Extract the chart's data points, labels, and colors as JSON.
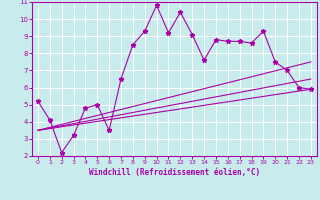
{
  "xlabel": "Windchill (Refroidissement éolien,°C)",
  "bg_color": "#c8ecec",
  "line_color": "#aa00aa",
  "grid_color": "#ffffff",
  "xlim": [
    -0.5,
    23.5
  ],
  "ylim": [
    2,
    11
  ],
  "xticks": [
    0,
    1,
    2,
    3,
    4,
    5,
    6,
    7,
    8,
    9,
    10,
    11,
    12,
    13,
    14,
    15,
    16,
    17,
    18,
    19,
    20,
    21,
    22,
    23
  ],
  "yticks": [
    2,
    3,
    4,
    5,
    6,
    7,
    8,
    9,
    10,
    11
  ],
  "series1_x": [
    0,
    1,
    2,
    3,
    4,
    5,
    6,
    7,
    8,
    9,
    10,
    11,
    12,
    13,
    14,
    15,
    16,
    17,
    18,
    19,
    20,
    21,
    22,
    23
  ],
  "series1_y": [
    5.2,
    4.1,
    2.2,
    3.2,
    4.8,
    5.0,
    3.5,
    6.5,
    8.5,
    9.3,
    10.8,
    9.2,
    10.4,
    9.1,
    7.6,
    8.8,
    8.7,
    8.7,
    8.6,
    9.3,
    7.5,
    7.0,
    6.0,
    5.9
  ],
  "series2_x": [
    0,
    23
  ],
  "series2_y": [
    3.5,
    5.9
  ],
  "series3_x": [
    0,
    23
  ],
  "series3_y": [
    3.5,
    6.5
  ],
  "series4_x": [
    0,
    23
  ],
  "series4_y": [
    3.5,
    7.5
  ],
  "xlabel_fontsize": 5.5,
  "tick_fontsize": 5.0
}
